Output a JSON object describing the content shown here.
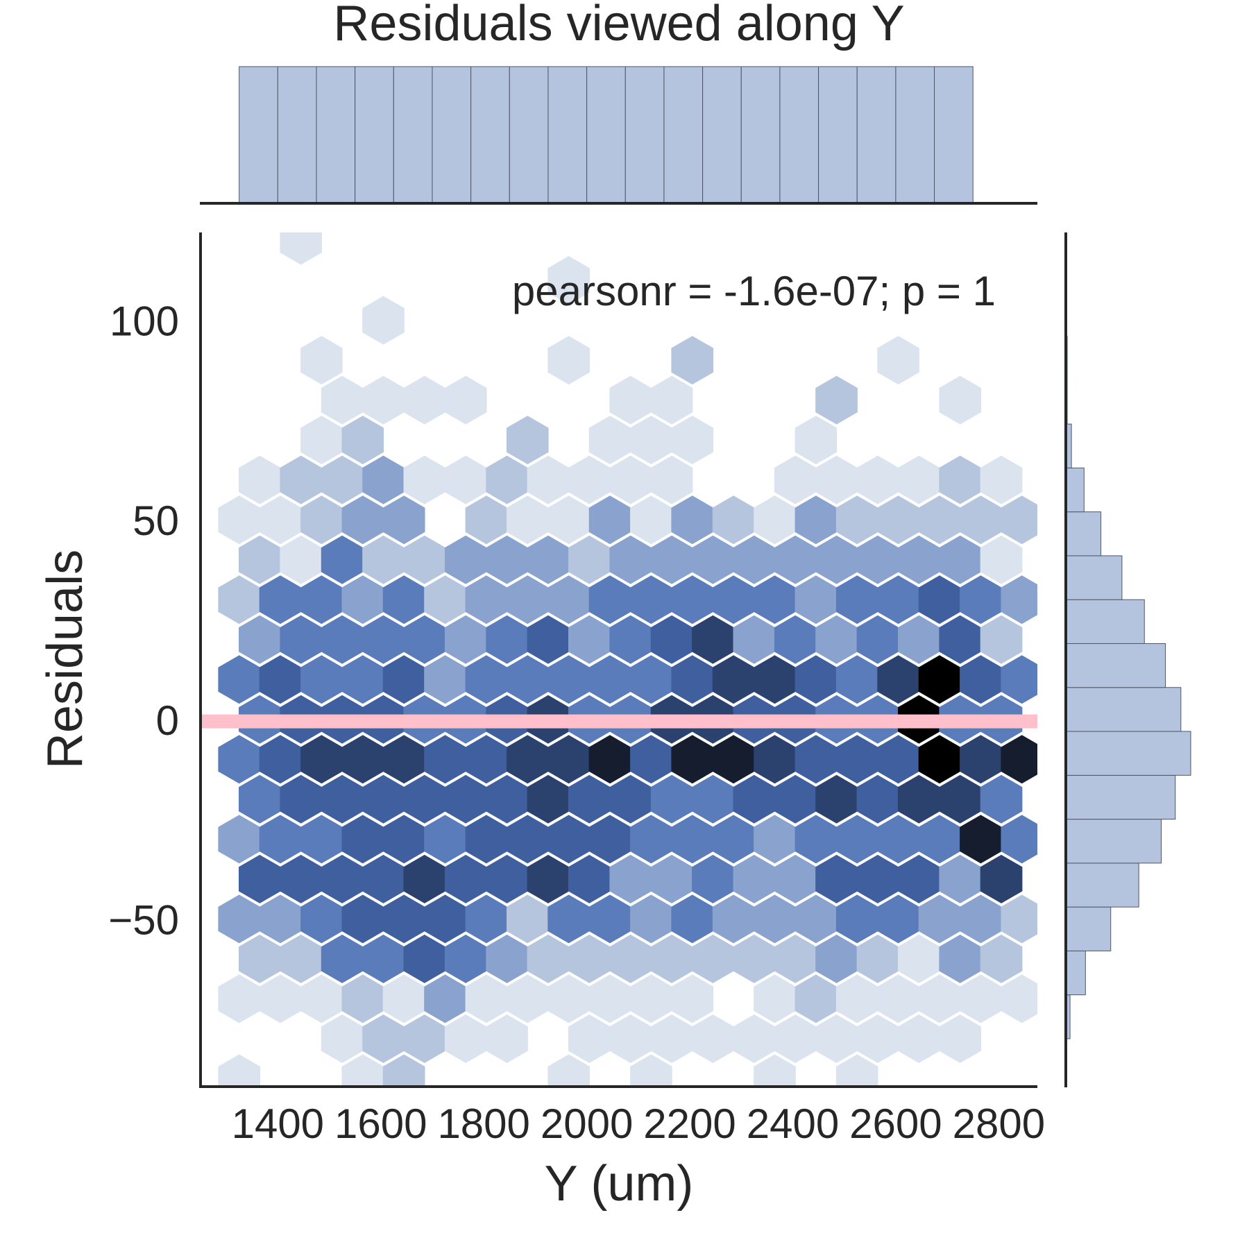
{
  "chart_data": {
    "type": "hexbin",
    "title": "Residuals viewed along Y",
    "xlabel": "Y (um)",
    "ylabel": "Residuals",
    "annotation": "pearsonr = -1.6e-07; p = 1",
    "xlim": [
      1250,
      2875
    ],
    "ylim": [
      -92,
      122
    ],
    "x_ticks": [
      1400,
      1600,
      1800,
      2000,
      2200,
      2400,
      2600,
      2800
    ],
    "x_tick_labels": [
      "1400",
      "1600",
      "1800",
      "2000",
      "2200",
      "2400",
      "2600",
      "2800"
    ],
    "y_ticks": [
      100,
      50,
      0,
      -50
    ],
    "y_tick_labels": [
      "100",
      "50",
      "0",
      "−50"
    ],
    "grid": false,
    "colors": {
      "hex_ramp": [
        "#f4f6fa",
        "#dbe3ef",
        "#b6c5de",
        "#8aa2ce",
        "#5b7cba",
        "#3f5f9e",
        "#2b416e",
        "#151d2e",
        "#000000"
      ],
      "marginal_fill": "#b5c4de",
      "marginal_edge": "#4d5568",
      "fit_line": "#ffc0cb",
      "axis": "#262626"
    },
    "fit_line": {
      "slope": 0,
      "intercept": -0.5,
      "x_range": [
        1250,
        2875
      ]
    },
    "hexbin": {
      "x_centers_even": [
        1325,
        1405,
        1485,
        1565,
        1645,
        1725,
        1805,
        1885,
        1965,
        2045,
        2125,
        2205,
        2285,
        2365,
        2445,
        2525,
        2605,
        2685,
        2765,
        2845
      ],
      "x_centers_odd": [
        1365,
        1445,
        1525,
        1605,
        1685,
        1765,
        1845,
        1925,
        2005,
        2085,
        2165,
        2245,
        2325,
        2405,
        2485,
        2565,
        2645,
        2725,
        2805
      ],
      "rows": [
        {
          "y": 120,
          "odd": true,
          "levels": [
            0,
            1,
            0,
            0,
            0,
            0,
            0,
            0,
            0,
            0,
            0,
            0,
            0,
            0,
            0,
            0,
            0,
            0,
            0
          ]
        },
        {
          "y": 110,
          "odd": false,
          "levels": [
            0,
            0,
            0,
            0,
            0,
            0,
            0,
            0,
            1,
            0,
            0,
            0,
            0,
            0,
            0,
            0,
            0,
            0,
            0,
            0
          ]
        },
        {
          "y": 100,
          "odd": true,
          "levels": [
            0,
            0,
            0,
            1,
            0,
            0,
            0,
            0,
            0,
            0,
            0,
            0,
            0,
            0,
            0,
            0,
            0,
            0,
            0
          ]
        },
        {
          "y": 90,
          "odd": false,
          "levels": [
            0,
            0,
            1,
            0,
            0,
            0,
            0,
            0,
            1,
            0,
            0,
            2,
            0,
            0,
            0,
            0,
            1,
            0,
            0,
            0
          ]
        },
        {
          "y": 80,
          "odd": true,
          "levels": [
            0,
            0,
            1,
            1,
            1,
            1,
            0,
            0,
            0,
            1,
            1,
            0,
            0,
            0,
            2,
            0,
            0,
            1,
            0
          ]
        },
        {
          "y": 70,
          "odd": false,
          "levels": [
            0,
            0,
            1,
            2,
            0,
            0,
            0,
            2,
            0,
            1,
            1,
            1,
            0,
            0,
            1,
            0,
            0,
            0,
            0,
            0
          ]
        },
        {
          "y": 60,
          "odd": true,
          "levels": [
            1,
            2,
            2,
            3,
            1,
            1,
            2,
            1,
            1,
            1,
            1,
            0,
            0,
            1,
            1,
            1,
            1,
            2,
            1
          ]
        },
        {
          "y": 50,
          "odd": false,
          "levels": [
            1,
            1,
            2,
            3,
            3,
            0,
            2,
            1,
            1,
            3,
            1,
            3,
            2,
            1,
            3,
            2,
            2,
            2,
            2,
            2
          ]
        },
        {
          "y": 40,
          "odd": true,
          "levels": [
            2,
            1,
            4,
            2,
            2,
            3,
            3,
            3,
            2,
            3,
            3,
            3,
            3,
            3,
            3,
            3,
            3,
            3,
            1
          ]
        },
        {
          "y": 30,
          "odd": false,
          "levels": [
            2,
            4,
            4,
            3,
            4,
            2,
            3,
            3,
            3,
            4,
            4,
            4,
            4,
            4,
            3,
            4,
            4,
            5,
            4,
            3
          ]
        },
        {
          "y": 20,
          "odd": true,
          "levels": [
            3,
            4,
            4,
            4,
            4,
            3,
            4,
            5,
            3,
            4,
            5,
            6,
            3,
            4,
            3,
            4,
            3,
            5,
            2
          ]
        },
        {
          "y": 10,
          "odd": false,
          "levels": [
            4,
            5,
            4,
            4,
            5,
            3,
            4,
            4,
            4,
            4,
            4,
            5,
            6,
            6,
            5,
            4,
            6,
            8,
            5,
            4
          ]
        },
        {
          "y": 0,
          "odd": true,
          "levels": [
            4,
            5,
            5,
            5,
            4,
            4,
            5,
            6,
            4,
            4,
            6,
            6,
            5,
            5,
            4,
            4,
            8,
            4,
            4
          ]
        },
        {
          "y": -10,
          "odd": false,
          "levels": [
            4,
            5,
            6,
            6,
            6,
            5,
            5,
            6,
            6,
            7,
            5,
            7,
            7,
            6,
            5,
            5,
            5,
            8,
            6,
            7
          ]
        },
        {
          "y": -20,
          "odd": true,
          "levels": [
            4,
            5,
            5,
            5,
            5,
            5,
            5,
            6,
            5,
            5,
            4,
            4,
            5,
            5,
            6,
            5,
            6,
            6,
            4
          ]
        },
        {
          "y": -30,
          "odd": false,
          "levels": [
            3,
            4,
            4,
            5,
            5,
            4,
            5,
            5,
            5,
            5,
            4,
            4,
            4,
            3,
            4,
            4,
            4,
            4,
            7,
            4
          ]
        },
        {
          "y": -40,
          "odd": true,
          "levels": [
            5,
            5,
            5,
            5,
            6,
            5,
            5,
            6,
            5,
            3,
            3,
            4,
            3,
            3,
            5,
            5,
            5,
            3,
            6
          ]
        },
        {
          "y": -50,
          "odd": false,
          "levels": [
            3,
            3,
            4,
            5,
            5,
            5,
            4,
            2,
            4,
            4,
            3,
            4,
            3,
            3,
            3,
            4,
            4,
            3,
            3,
            2
          ]
        },
        {
          "y": -60,
          "odd": true,
          "levels": [
            2,
            2,
            4,
            4,
            5,
            4,
            3,
            2,
            2,
            2,
            2,
            2,
            2,
            2,
            3,
            2,
            1,
            3,
            2
          ]
        },
        {
          "y": -70,
          "odd": false,
          "levels": [
            1,
            1,
            1,
            2,
            1,
            3,
            1,
            1,
            1,
            1,
            1,
            1,
            0,
            1,
            2,
            1,
            1,
            1,
            1,
            1
          ]
        },
        {
          "y": -80,
          "odd": true,
          "levels": [
            0,
            0,
            1,
            2,
            2,
            1,
            1,
            0,
            1,
            1,
            1,
            1,
            1,
            1,
            1,
            1,
            1,
            1,
            0
          ]
        },
        {
          "y": -90,
          "odd": false,
          "levels": [
            1,
            0,
            0,
            1,
            2,
            0,
            0,
            0,
            1,
            0,
            1,
            0,
            0,
            1,
            0,
            1,
            0,
            0,
            0,
            0
          ]
        },
        {
          "y": -100,
          "odd": true,
          "levels": [
            0,
            0,
            0,
            1,
            0,
            0,
            0,
            0,
            0,
            0,
            0,
            0,
            0,
            0,
            0,
            0,
            0,
            0,
            0
          ]
        }
      ]
    },
    "marginal_x": {
      "bin_edges": [
        1325,
        1400,
        1475,
        1550,
        1625,
        1700,
        1775,
        1850,
        1925,
        2000,
        2075,
        2150,
        2225,
        2300,
        2375,
        2450,
        2525,
        2600,
        2675,
        2750
      ],
      "counts": [
        100,
        100,
        100,
        100,
        100,
        100,
        100,
        100,
        100,
        100,
        100,
        100,
        100,
        100,
        100,
        100,
        100,
        100,
        100
      ]
    },
    "marginal_y": {
      "bin_edges": [
        -80,
        -69,
        -58,
        -47,
        -36,
        -25,
        -14,
        -3,
        8,
        19,
        30,
        41,
        52,
        63,
        74,
        85,
        96,
        107
      ],
      "counts": [
        3,
        14,
        32,
        52,
        68,
        78,
        89,
        82,
        71,
        56,
        40,
        25,
        13,
        4,
        1,
        1,
        0
      ]
    }
  }
}
